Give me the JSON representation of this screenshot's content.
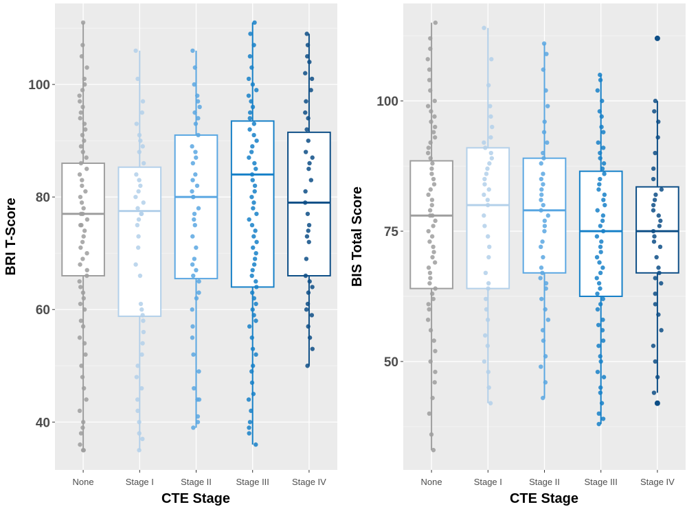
{
  "chart_data": [
    {
      "type": "box",
      "xlabel": "CTE Stage",
      "ylabel": "BRI T-Score",
      "ylim": [
        31.5,
        114.4
      ],
      "yticks": [
        40,
        60,
        80,
        100
      ],
      "grid": true,
      "categories": [
        "None",
        "Stage I",
        "Stage II",
        "Stage III",
        "Stage IV"
      ],
      "colors": [
        "#9e9e9e",
        "#b3d0ea",
        "#5aa7e2",
        "#1680c8",
        "#0d4e86"
      ],
      "boxes": [
        {
          "q1": 66,
          "median": 77,
          "q3": 86,
          "low": 35,
          "high": 111
        },
        {
          "q1": 58.8,
          "median": 77.5,
          "q3": 85.3,
          "low": 35,
          "high": 106
        },
        {
          "q1": 65.5,
          "median": 80,
          "q3": 91,
          "low": 39,
          "high": 106
        },
        {
          "q1": 64,
          "median": 84,
          "q3": 93.5,
          "low": 36,
          "high": 111
        },
        {
          "q1": 66,
          "median": 79,
          "q3": 91.5,
          "low": 50,
          "high": 109
        }
      ],
      "points": [
        [
          35,
          35,
          36,
          38,
          39,
          40,
          42,
          44,
          46,
          48,
          50,
          52,
          54,
          55,
          57,
          58,
          60,
          61,
          62,
          63,
          64,
          65,
          66,
          67,
          68,
          69,
          70,
          71,
          72,
          73,
          74,
          75,
          75,
          76,
          77,
          77,
          78,
          79,
          80,
          81,
          82,
          83,
          84,
          85,
          86,
          87,
          88,
          89,
          90,
          91,
          92,
          93,
          94,
          95,
          96,
          97,
          98,
          99,
          100,
          101,
          103,
          105,
          107,
          111
        ],
        [
          35,
          37,
          38,
          40,
          42,
          44,
          46,
          48,
          50,
          52,
          54,
          56,
          58,
          59,
          60,
          61,
          66,
          68,
          71,
          73,
          75,
          76,
          77,
          77,
          78,
          79,
          80,
          81,
          82,
          83,
          84,
          86,
          88,
          89,
          90,
          91,
          93,
          95,
          97,
          101,
          106
        ],
        [
          39,
          40,
          41,
          44,
          44,
          46,
          49,
          52,
          55,
          57,
          60,
          62,
          63,
          65,
          66,
          67,
          68,
          69,
          71,
          73,
          75,
          76,
          77,
          78,
          80,
          80,
          81,
          82,
          83,
          84,
          86,
          87,
          88,
          89,
          91,
          93,
          94,
          95,
          96,
          97,
          98,
          100,
          103,
          106
        ],
        [
          36,
          38,
          39,
          40,
          42,
          44,
          45,
          47,
          49,
          50,
          52,
          53,
          55,
          57,
          58,
          59,
          60,
          61,
          62,
          63,
          64,
          65,
          66,
          67,
          68,
          69,
          70,
          71,
          72,
          73,
          74,
          75,
          76,
          77,
          78,
          79,
          80,
          81,
          82,
          83,
          84,
          85,
          86,
          87,
          88,
          89,
          90,
          91,
          92,
          93,
          94,
          95,
          96,
          97,
          98,
          99,
          100,
          101,
          103,
          105,
          107,
          109,
          111
        ],
        [
          50,
          53,
          55,
          57,
          59,
          60,
          61,
          63,
          64,
          65,
          66,
          69,
          72,
          73,
          74,
          75,
          77,
          79,
          81,
          83,
          85,
          86,
          87,
          88,
          90,
          92,
          94,
          95,
          97,
          99,
          101,
          102,
          104,
          105,
          107,
          109
        ]
      ]
    },
    {
      "type": "box",
      "xlabel": "CTE Stage",
      "ylabel": "BIS Total Score",
      "ylim": [
        29.2,
        118.7
      ],
      "yticks": [
        50,
        75,
        100
      ],
      "grid": true,
      "categories": [
        "None",
        "Stage I",
        "Stage II",
        "Stage III",
        "Stage IV"
      ],
      "colors": [
        "#9e9e9e",
        "#b3d0ea",
        "#5aa7e2",
        "#1680c8",
        "#0d4e86"
      ],
      "boxes": [
        {
          "q1": 64,
          "median": 78,
          "q3": 88.5,
          "low": 33,
          "high": 115
        },
        {
          "q1": 64,
          "median": 80,
          "q3": 91,
          "low": 42,
          "high": 114
        },
        {
          "q1": 67,
          "median": 79,
          "q3": 89,
          "low": 43,
          "high": 111
        },
        {
          "q1": 62.5,
          "median": 75,
          "q3": 86.5,
          "low": 38,
          "high": 105
        },
        {
          "q1": 67,
          "median": 75,
          "q3": 83.5,
          "low": 44,
          "high": 100
        }
      ],
      "outliers": [
        [],
        [],
        [],
        [],
        [
          112,
          42
        ]
      ],
      "points": [
        [
          33,
          36,
          40,
          43,
          46,
          48,
          50,
          52,
          54,
          56,
          58,
          60,
          61,
          62,
          63,
          64,
          65,
          66,
          67,
          68,
          69,
          70,
          71,
          72,
          73,
          74,
          75,
          76,
          77,
          78,
          78,
          79,
          80,
          81,
          82,
          83,
          84,
          85,
          86,
          87,
          88,
          89,
          90,
          91,
          92,
          93,
          94,
          95,
          96,
          97,
          98,
          99,
          100,
          102,
          104,
          106,
          108,
          110,
          112,
          115
        ],
        [
          42,
          45,
          48,
          50,
          53,
          55,
          58,
          60,
          62,
          64,
          65,
          67,
          70,
          72,
          74,
          76,
          78,
          80,
          81,
          82,
          83,
          84,
          85,
          86,
          87,
          88,
          89,
          90,
          91,
          92,
          93,
          95,
          97,
          99,
          103,
          108,
          114
        ],
        [
          43,
          46,
          49,
          51,
          54,
          56,
          58,
          60,
          62,
          64,
          65,
          66,
          67,
          68,
          70,
          72,
          73,
          75,
          76,
          77,
          78,
          79,
          80,
          81,
          82,
          83,
          84,
          85,
          86,
          88,
          89,
          90,
          92,
          94,
          96,
          99,
          102,
          106,
          109,
          111
        ],
        [
          38,
          39,
          40,
          42,
          44,
          45,
          47,
          48,
          50,
          51,
          53,
          54,
          56,
          57,
          58,
          60,
          61,
          62,
          63,
          64,
          65,
          66,
          67,
          68,
          69,
          70,
          71,
          72,
          73,
          74,
          75,
          76,
          77,
          78,
          79,
          80,
          81,
          82,
          83,
          84,
          85,
          86,
          87,
          88,
          89,
          90,
          91,
          92,
          94,
          95,
          97,
          98,
          100,
          102,
          104,
          105
        ],
        [
          44,
          47,
          50,
          53,
          56,
          59,
          61,
          63,
          65,
          66,
          67,
          68,
          70,
          72,
          73,
          74,
          75,
          76,
          77,
          78,
          79,
          80,
          81,
          82,
          83,
          85,
          87,
          90,
          93,
          96,
          98,
          100
        ]
      ]
    }
  ]
}
